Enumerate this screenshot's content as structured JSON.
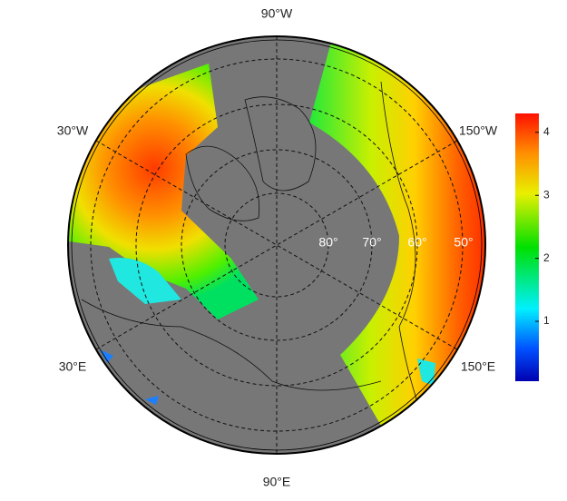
{
  "map": {
    "longitude_labels": [
      "90°W",
      "30°W",
      "150°W",
      "30°E",
      "150°E",
      "90°E"
    ],
    "latitude_labels": [
      "80°",
      "70°",
      "60°",
      "50°"
    ],
    "colorbar": {
      "range": [
        0.05,
        4.3
      ],
      "ticks": [
        1,
        2,
        3,
        4
      ]
    }
  }
}
